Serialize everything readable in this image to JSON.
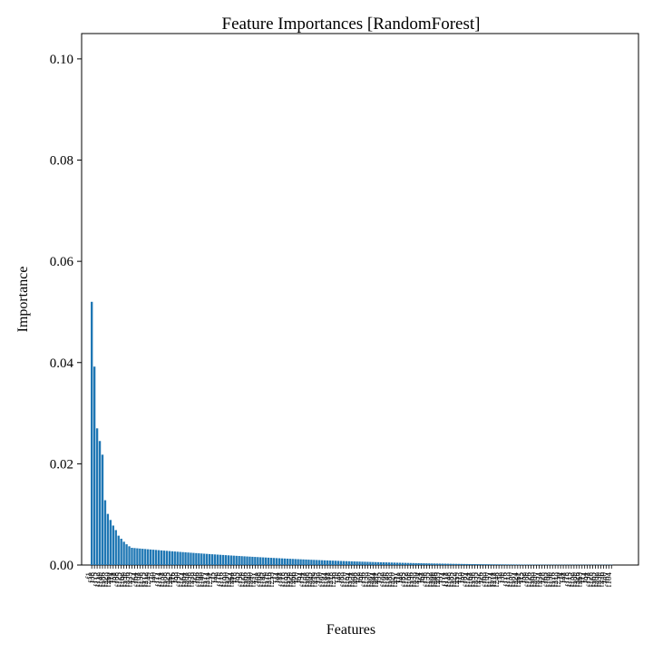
{
  "chart_data": {
    "type": "bar",
    "title": "Feature Importances [RandomForest]",
    "xlabel": "Features",
    "ylabel": "Importance",
    "ylim": [
      0,
      0.105
    ],
    "yticks": [
      "0.00",
      "0.02",
      "0.04",
      "0.06",
      "0.08",
      "0.10"
    ],
    "ytick_values": [
      0,
      0.02,
      0.04,
      0.06,
      0.08,
      0.1
    ],
    "bar_color": "#1f77b4",
    "top_values": [
      0.052,
      0.0392,
      0.027,
      0.0245,
      0.0218,
      0.0128,
      0.0101,
      0.0089,
      0.0078,
      0.0069,
      0.0058,
      0.0052,
      0.0046,
      0.0041,
      0.0037
    ],
    "tail_values": {
      "count": 180,
      "start": 0.0034,
      "end": 5e-05
    },
    "category_prefix": "f"
  }
}
